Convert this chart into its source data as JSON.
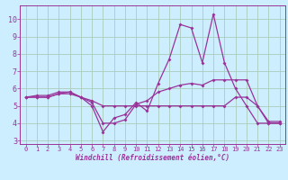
{
  "xlabel": "Windchill (Refroidissement éolien,°C)",
  "bg_color": "#cceeff",
  "grid_color": "#aaccbb",
  "line_color": "#993399",
  "spine_color": "#993399",
  "xlim_min": -0.5,
  "xlim_max": 23.5,
  "ylim_min": 2.8,
  "ylim_max": 10.8,
  "xticks": [
    0,
    1,
    2,
    3,
    4,
    5,
    6,
    7,
    8,
    9,
    10,
    11,
    12,
    13,
    14,
    15,
    16,
    17,
    18,
    19,
    20,
    21,
    22,
    23
  ],
  "yticks": [
    3,
    4,
    5,
    6,
    7,
    8,
    9,
    10
  ],
  "line1_x": [
    0,
    1,
    2,
    3,
    4,
    5,
    6,
    7,
    8,
    9,
    10,
    11,
    12,
    13,
    14,
    15,
    16,
    17,
    18,
    19,
    20,
    21,
    22,
    23
  ],
  "line1_y": [
    5.5,
    5.5,
    5.5,
    5.7,
    5.7,
    5.5,
    5.3,
    5.0,
    5.0,
    5.0,
    5.0,
    5.0,
    5.0,
    5.0,
    5.0,
    5.0,
    5.0,
    5.0,
    5.0,
    5.5,
    5.5,
    5.0,
    4.1,
    4.1
  ],
  "line2_x": [
    0,
    1,
    2,
    3,
    4,
    5,
    6,
    7,
    8,
    9,
    10,
    11,
    12,
    13,
    14,
    15,
    16,
    17,
    18,
    19,
    20,
    21,
    22,
    23
  ],
  "line2_y": [
    5.5,
    5.6,
    5.6,
    5.8,
    5.8,
    5.5,
    5.0,
    3.5,
    4.3,
    4.5,
    5.2,
    4.7,
    6.3,
    7.7,
    9.7,
    9.5,
    7.5,
    10.3,
    7.5,
    6.0,
    5.0,
    4.0,
    4.0,
    4.0
  ],
  "line3_x": [
    0,
    1,
    2,
    3,
    4,
    5,
    6,
    7,
    8,
    9,
    10,
    11,
    12,
    13,
    14,
    15,
    16,
    17,
    18,
    19,
    20,
    21,
    22,
    23
  ],
  "line3_y": [
    5.5,
    5.5,
    5.5,
    5.7,
    5.8,
    5.5,
    5.2,
    4.0,
    4.0,
    4.2,
    5.1,
    5.3,
    5.8,
    6.0,
    6.2,
    6.3,
    6.2,
    6.5,
    6.5,
    6.5,
    6.5,
    5.0,
    4.0,
    4.0
  ],
  "xlabel_fontsize": 5.5,
  "tick_fontsize": 5,
  "ytick_fontsize": 6,
  "marker_size": 2.0,
  "line_width": 0.9
}
